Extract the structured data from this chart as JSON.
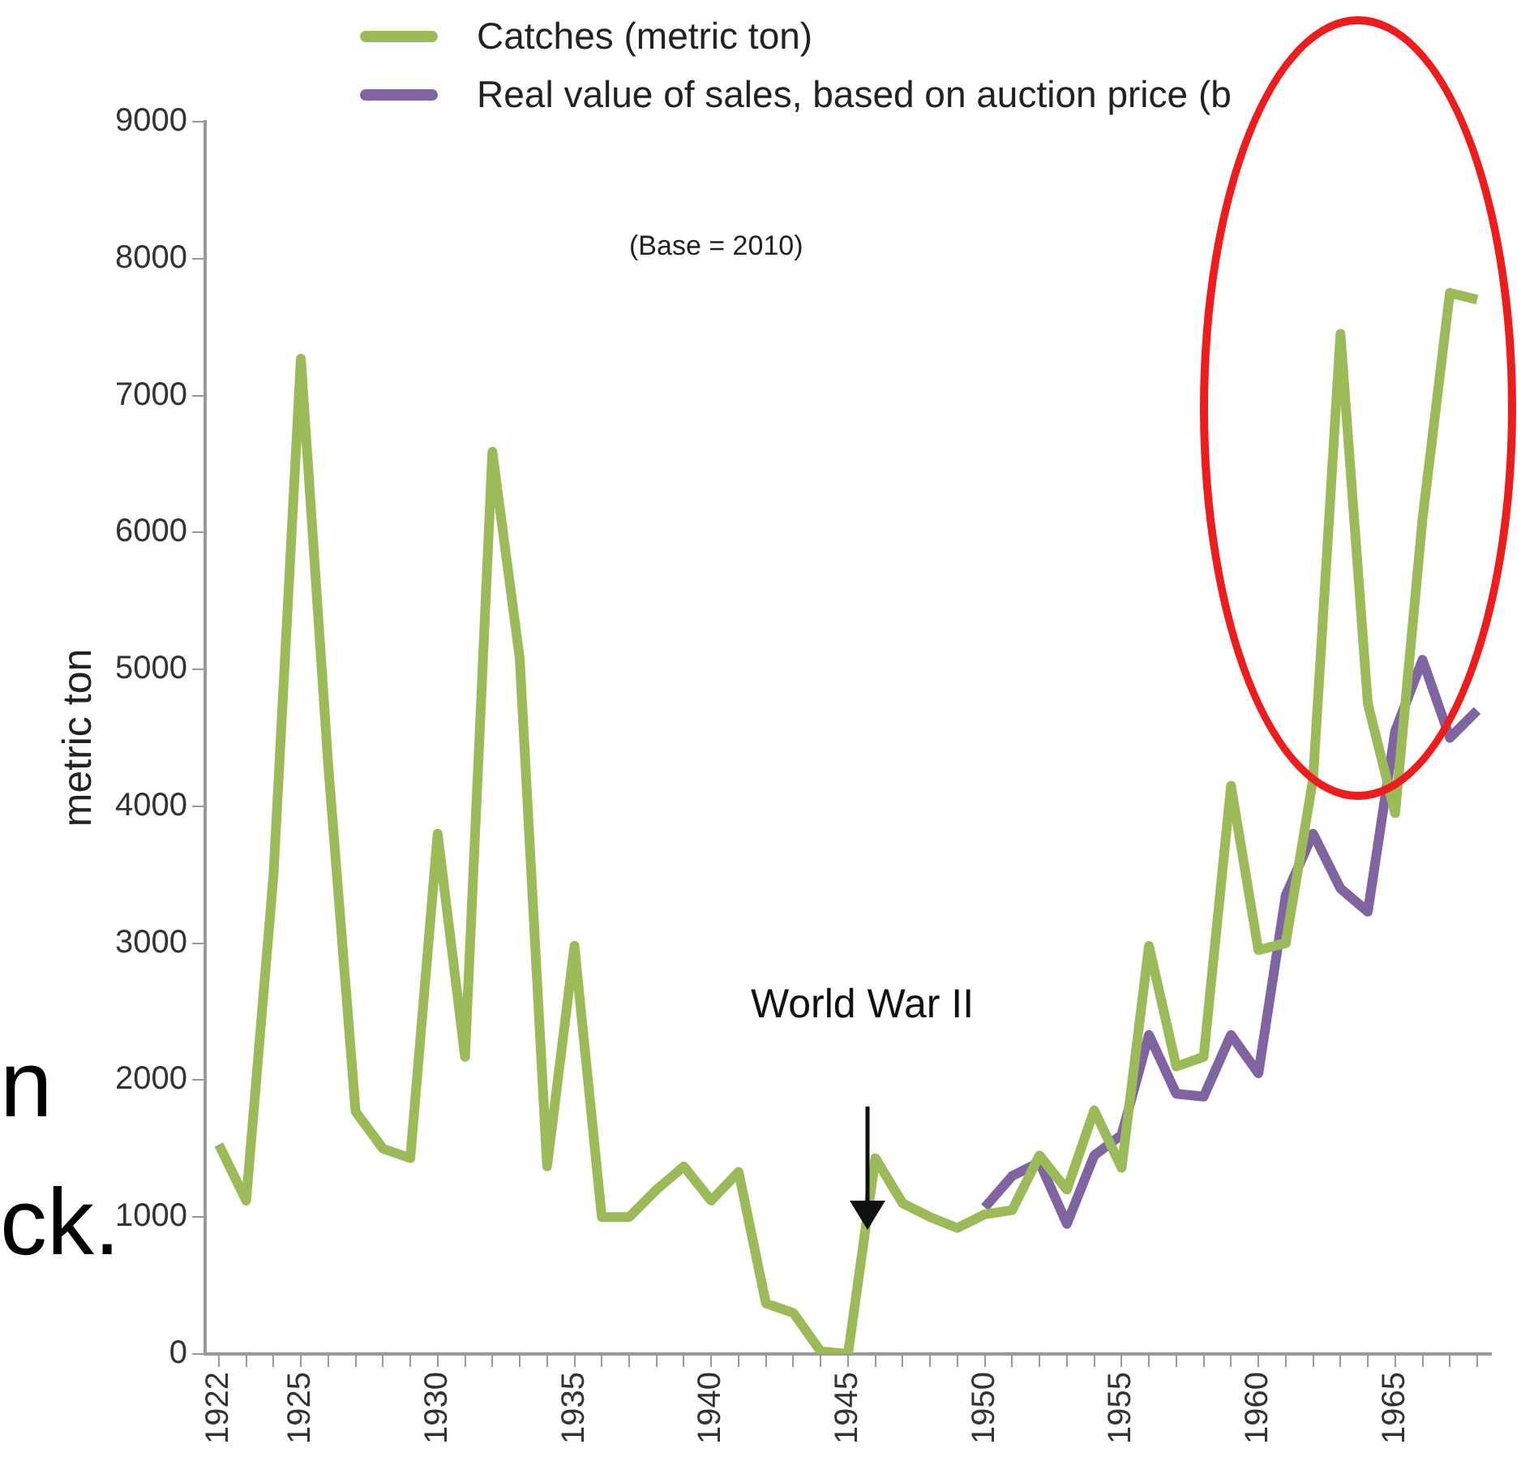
{
  "chart_data": {
    "type": "line",
    "ylabel": "metric ton",
    "legend": "top",
    "marker": "none",
    "grid": false,
    "annotations": [
      "(Base = 2010)",
      "World War II",
      "n",
      "ck."
    ],
    "x": [
      1922,
      1923,
      1924,
      1925,
      1926,
      1927,
      1928,
      1929,
      1930,
      1931,
      1932,
      1933,
      1934,
      1935,
      1936,
      1937,
      1938,
      1939,
      1940,
      1941,
      1942,
      1943,
      1944,
      1945,
      1946,
      1947,
      1948,
      1949,
      1950,
      1951,
      1952,
      1953,
      1954,
      1955,
      1956,
      1957,
      1958,
      1959,
      1960,
      1961,
      1962,
      1963,
      1964,
      1965,
      1966,
      1967,
      1968
    ],
    "series": [
      {
        "name": "Catches (metric ton)",
        "color": "#9bbb59",
        "values": [
          1530,
          1120,
          3500,
          7270,
          4300,
          1770,
          1500,
          1430,
          3800,
          2170,
          6590,
          5080,
          1370,
          2980,
          1000,
          1000,
          1200,
          1370,
          1120,
          1330,
          370,
          300,
          20,
          0,
          1430,
          1100,
          1000,
          920,
          1020,
          1050,
          1450,
          1200,
          1780,
          1360,
          2980,
          2100,
          2170,
          4150,
          2950,
          3000,
          4200,
          7450,
          4750,
          3950,
          6100,
          7750,
          7700
        ]
      },
      {
        "name": "Real value of sales, based on auction price (b",
        "color": "#8064a2",
        "x": [
          1950,
          1951,
          1952,
          1953,
          1954,
          1955,
          1956,
          1957,
          1958,
          1959,
          1960,
          1961,
          1962,
          1963,
          1964,
          1965,
          1966,
          1967,
          1968
        ],
        "values": [
          1070,
          1300,
          1400,
          950,
          1450,
          1600,
          2330,
          1900,
          1880,
          2330,
          2050,
          3350,
          3800,
          3400,
          3230,
          4550,
          5070,
          4500,
          4700
        ]
      }
    ],
    "xlim": [
      1921.5,
      1968.5
    ],
    "xticks": [
      {
        "value": 1922,
        "label": "1922"
      },
      {
        "value": 1923,
        "label": null
      },
      {
        "value": 1924,
        "label": null
      },
      {
        "value": 1925,
        "label": "1925"
      },
      {
        "value": 1926,
        "label": null
      },
      {
        "value": 1927,
        "label": null
      },
      {
        "value": 1928,
        "label": null
      },
      {
        "value": 1929,
        "label": null
      },
      {
        "value": 1930,
        "label": "1930"
      },
      {
        "value": 1931,
        "label": null
      },
      {
        "value": 1932,
        "label": null
      },
      {
        "value": 1933,
        "label": null
      },
      {
        "value": 1934,
        "label": null
      },
      {
        "value": 1935,
        "label": "1935"
      },
      {
        "value": 1936,
        "label": null
      },
      {
        "value": 1937,
        "label": null
      },
      {
        "value": 1938,
        "label": null
      },
      {
        "value": 1939,
        "label": null
      },
      {
        "value": 1940,
        "label": "1940"
      },
      {
        "value": 1941,
        "label": null
      },
      {
        "value": 1942,
        "label": null
      },
      {
        "value": 1943,
        "label": null
      },
      {
        "value": 1944,
        "label": null
      },
      {
        "value": 1945,
        "label": "1945"
      },
      {
        "value": 1946,
        "label": null
      },
      {
        "value": 1947,
        "label": null
      },
      {
        "value": 1948,
        "label": null
      },
      {
        "value": 1949,
        "label": null
      },
      {
        "value": 1950,
        "label": "1950"
      },
      {
        "value": 1951,
        "label": null
      },
      {
        "value": 1952,
        "label": null
      },
      {
        "value": 1953,
        "label": null
      },
      {
        "value": 1954,
        "label": null
      },
      {
        "value": 1955,
        "label": "1955"
      },
      {
        "value": 1956,
        "label": null
      },
      {
        "value": 1957,
        "label": null
      },
      {
        "value": 1958,
        "label": null
      },
      {
        "value": 1959,
        "label": null
      },
      {
        "value": 1960,
        "label": "1960"
      },
      {
        "value": 1961,
        "label": null
      },
      {
        "value": 1962,
        "label": null
      },
      {
        "value": 1963,
        "label": null
      },
      {
        "value": 1964,
        "label": null
      },
      {
        "value": 1965,
        "label": "1965"
      },
      {
        "value": 1966,
        "label": null
      },
      {
        "value": 1967,
        "label": null
      },
      {
        "value": 1968,
        "label": null
      }
    ],
    "ylim": [
      0,
      9000
    ],
    "yticks": [
      0,
      1000,
      2000,
      3000,
      4000,
      5000,
      6000,
      7000,
      8000,
      9000
    ]
  }
}
